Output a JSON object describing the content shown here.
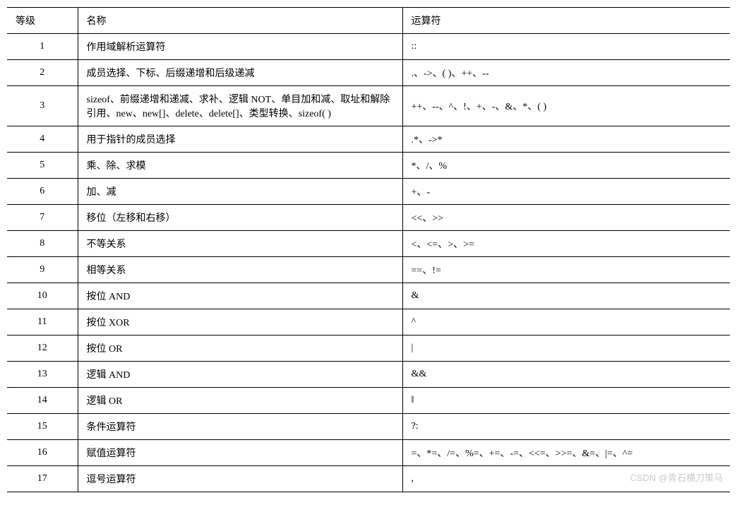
{
  "table": {
    "columns": [
      "等级",
      "名称",
      "运算符"
    ],
    "column_widths": [
      "100px",
      "460px",
      "auto"
    ],
    "header_border_top": "1.5px solid #000000",
    "row_border": "1px solid #000000",
    "last_row_border": "1.5px solid #000000",
    "background_color": "#ffffff",
    "text_color": "#000000",
    "font_size": 14,
    "font_family": "SimSun, 宋体, Times New Roman, serif",
    "cell_padding": "8px 12px",
    "rows": [
      {
        "level": "1",
        "name": "作用域解析运算符",
        "op": "::"
      },
      {
        "level": "2",
        "name": "成员选择、下标、后缀递增和后级递减",
        "op": ".、->、( )、++、--"
      },
      {
        "level": "3",
        "name": "sizeof、前缀递增和递减、求补、逻辑 NOT、单目加和减、取址和解除引用、new、new[]、delete、delete[]、类型转换、sizeof( )",
        "op": "++、--、^、!、+、-、&、*、( )"
      },
      {
        "level": "4",
        "name": "用于指针的成员选择",
        "op": ".*、->*"
      },
      {
        "level": "5",
        "name": "乘、除、求模",
        "op": "*、/、%"
      },
      {
        "level": "6",
        "name": "加、减",
        "op": "+、-"
      },
      {
        "level": "7",
        "name": "移位（左移和右移）",
        "op": "<<、>>"
      },
      {
        "level": "8",
        "name": "不等关系",
        "op": "<、<=、>、>="
      },
      {
        "level": "9",
        "name": "相等关系",
        "op": "==、!="
      },
      {
        "level": "10",
        "name": "按位 AND",
        "op": "&"
      },
      {
        "level": "11",
        "name": "按位 XOR",
        "op": "^"
      },
      {
        "level": "12",
        "name": "按位 OR",
        "op": "|"
      },
      {
        "level": "13",
        "name": "逻辑 AND",
        "op": "&&"
      },
      {
        "level": "14",
        "name": "逻辑 OR",
        "op": "‖"
      },
      {
        "level": "15",
        "name": "条件运算符",
        "op": "?:"
      },
      {
        "level": "16",
        "name": "赋值运算符",
        "op": "=、*=、/=、%=、+=、-=、<<=、>>=、&=、|=、^="
      },
      {
        "level": "17",
        "name": "逗号运算符",
        "op": ","
      }
    ]
  },
  "watermark": {
    "text": "CSDN @青石横刀策马",
    "color": "#cccccc",
    "font_size": 13
  }
}
